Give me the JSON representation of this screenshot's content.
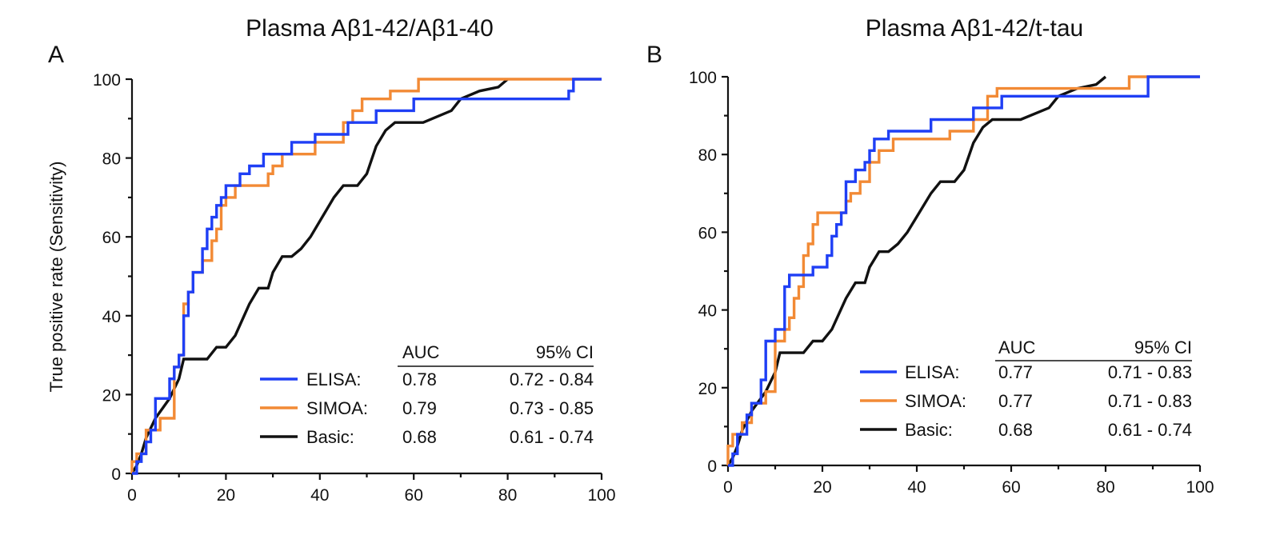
{
  "colors": {
    "ELISA": "#1f3ff5",
    "SIMOA": "#f28a35",
    "Basic": "#111111"
  },
  "legend_headers": {
    "auc": "AUC",
    "ci": "95% CI"
  },
  "chart_data": [
    {
      "type": "line",
      "panel_label": "A",
      "title": "Plasma Aβ1-42/Aβ1-40",
      "xlabel": "",
      "ylabel": "True positive rate (Sensitivity)",
      "xlim": [
        0,
        100
      ],
      "ylim": [
        0,
        100
      ],
      "xticks": [
        "0",
        "20",
        "40",
        "60",
        "80",
        "100"
      ],
      "yticks": [
        "0",
        "20",
        "40",
        "60",
        "80",
        "100"
      ],
      "legend_position": "bottom-right",
      "series": [
        {
          "name": "ELISA",
          "label": "ELISA:",
          "auc": "0.78",
          "ci": "0.72 - 0.84",
          "x": [
            0,
            0.5,
            1,
            1,
            2,
            2,
            3,
            3,
            4,
            4,
            5,
            5,
            8,
            8,
            9,
            9,
            10,
            10,
            11,
            11,
            12,
            12,
            13,
            13,
            15,
            15,
            16,
            16,
            17,
            17,
            18,
            18,
            19,
            19,
            20,
            20,
            21,
            21,
            23,
            23,
            25,
            25,
            26,
            26,
            28,
            28,
            34,
            34,
            39,
            39,
            46,
            46,
            52,
            52,
            60,
            60,
            93,
            93,
            94,
            94,
            100
          ],
          "y": [
            0,
            0,
            0,
            3,
            3,
            5,
            5,
            8,
            8,
            11,
            11,
            19,
            19,
            24,
            24,
            27,
            27,
            30,
            30,
            40,
            40,
            46,
            46,
            51,
            51,
            57,
            57,
            62,
            62,
            65,
            65,
            68,
            68,
            70,
            70,
            73,
            73,
            73,
            73,
            76,
            76,
            78,
            78,
            78,
            78,
            81,
            81,
            84,
            84,
            86,
            86,
            89,
            89,
            92,
            92,
            95,
            95,
            97,
            97,
            100,
            100
          ]
        },
        {
          "name": "SIMOA",
          "label": "SIMOA:",
          "auc": "0.79",
          "ci": "0.73 - 0.85",
          "x": [
            0,
            0,
            1,
            1,
            3,
            3,
            6,
            6,
            9,
            9,
            10,
            10,
            11,
            11,
            12,
            12,
            13,
            13,
            15,
            15,
            17,
            17,
            18,
            18,
            19,
            19,
            20,
            20,
            22,
            22,
            29,
            29,
            30,
            30,
            32,
            32,
            39,
            39,
            45,
            45,
            47,
            47,
            49,
            49,
            55,
            55,
            60,
            60,
            61,
            61,
            62,
            62,
            94,
            94,
            100
          ],
          "y": [
            0,
            3,
            3,
            5,
            5,
            11,
            11,
            14,
            14,
            27,
            27,
            30,
            30,
            43,
            43,
            46,
            46,
            51,
            51,
            54,
            54,
            59,
            59,
            62,
            62,
            68,
            68,
            70,
            70,
            73,
            73,
            76,
            76,
            78,
            78,
            81,
            81,
            84,
            84,
            89,
            89,
            92,
            92,
            95,
            95,
            97,
            97,
            97,
            97,
            100,
            100,
            100,
            100,
            100,
            100
          ]
        },
        {
          "name": "Basic",
          "label": "Basic:",
          "auc": "0.68",
          "ci": "0.61 - 0.74",
          "x": [
            0,
            1,
            2,
            3,
            5,
            8,
            10,
            11,
            16,
            18,
            20,
            22,
            25,
            27,
            29,
            30,
            32,
            34,
            36,
            38,
            40,
            43,
            45,
            48,
            50,
            52,
            54,
            56,
            58,
            62,
            68,
            70,
            74,
            78,
            80
          ],
          "y": [
            0,
            2,
            5,
            9,
            14,
            19,
            24,
            29,
            29,
            32,
            32,
            35,
            43,
            47,
            47,
            51,
            55,
            55,
            57,
            60,
            64,
            70,
            73,
            73,
            76,
            83,
            87,
            89,
            89,
            89,
            92,
            95,
            97,
            98,
            100
          ]
        }
      ]
    },
    {
      "type": "line",
      "panel_label": "B",
      "title": "Plasma Aβ1-42/t-tau",
      "xlabel": "",
      "ylabel": "",
      "xlim": [
        0,
        100
      ],
      "ylim": [
        0,
        100
      ],
      "xticks": [
        "0",
        "20",
        "40",
        "60",
        "80",
        "100"
      ],
      "yticks": [
        "0",
        "20",
        "40",
        "60",
        "80",
        "100"
      ],
      "legend_position": "bottom-right",
      "series": [
        {
          "name": "ELISA",
          "label": "ELISA:",
          "auc": "0.77",
          "ci": "0.71 - 0.83",
          "x": [
            0,
            1,
            1,
            2,
            2,
            4,
            4,
            5,
            5,
            7,
            7,
            8,
            8,
            10,
            10,
            12,
            12,
            13,
            13,
            18,
            18,
            21,
            21,
            22,
            22,
            23,
            23,
            24,
            24,
            25,
            25,
            27,
            27,
            29,
            29,
            30,
            30,
            31,
            31,
            34,
            34,
            35,
            35,
            43,
            43,
            52,
            52,
            58,
            58,
            89,
            89,
            100
          ],
          "y": [
            0,
            0,
            3,
            3,
            8,
            8,
            13,
            13,
            16,
            16,
            22,
            22,
            32,
            32,
            35,
            35,
            46,
            46,
            49,
            49,
            51,
            51,
            54,
            54,
            59,
            59,
            62,
            62,
            65,
            65,
            73,
            73,
            76,
            76,
            78,
            78,
            81,
            81,
            84,
            84,
            86,
            86,
            86,
            86,
            89,
            89,
            92,
            92,
            95,
            95,
            100,
            100
          ]
        },
        {
          "name": "SIMOA",
          "label": "SIMOA:",
          "auc": "0.77",
          "ci": "0.71 - 0.83",
          "x": [
            0,
            0,
            1,
            1,
            3,
            3,
            5,
            5,
            8,
            8,
            10,
            10,
            12,
            12,
            13,
            13,
            14,
            14,
            15,
            15,
            16,
            16,
            17,
            17,
            18,
            18,
            19,
            19,
            23,
            23,
            25,
            25,
            26,
            26,
            28,
            28,
            30,
            30,
            32,
            32,
            35,
            35,
            47,
            47,
            52,
            52,
            55,
            55,
            57,
            57,
            72,
            72,
            85,
            85,
            100
          ],
          "y": [
            0,
            5,
            5,
            8,
            8,
            11,
            11,
            16,
            16,
            19,
            19,
            32,
            32,
            35,
            35,
            38,
            38,
            43,
            43,
            46,
            46,
            54,
            54,
            57,
            57,
            62,
            62,
            65,
            65,
            65,
            65,
            68,
            68,
            70,
            70,
            73,
            73,
            78,
            78,
            81,
            81,
            84,
            84,
            86,
            86,
            89,
            89,
            95,
            95,
            97,
            97,
            97,
            97,
            100,
            100
          ]
        },
        {
          "name": "Basic",
          "label": "Basic:",
          "auc": "0.68",
          "ci": "0.61 - 0.74",
          "x": [
            0,
            1,
            2,
            3,
            5,
            8,
            10,
            11,
            16,
            18,
            20,
            22,
            25,
            27,
            29,
            30,
            32,
            34,
            36,
            38,
            40,
            43,
            45,
            48,
            50,
            52,
            54,
            56,
            58,
            62,
            68,
            70,
            74,
            78,
            80
          ],
          "y": [
            0,
            2,
            5,
            9,
            14,
            19,
            24,
            29,
            29,
            32,
            32,
            35,
            43,
            47,
            47,
            51,
            55,
            55,
            57,
            60,
            64,
            70,
            73,
            73,
            76,
            83,
            87,
            89,
            89,
            89,
            92,
            95,
            97,
            98,
            100
          ]
        }
      ]
    }
  ]
}
